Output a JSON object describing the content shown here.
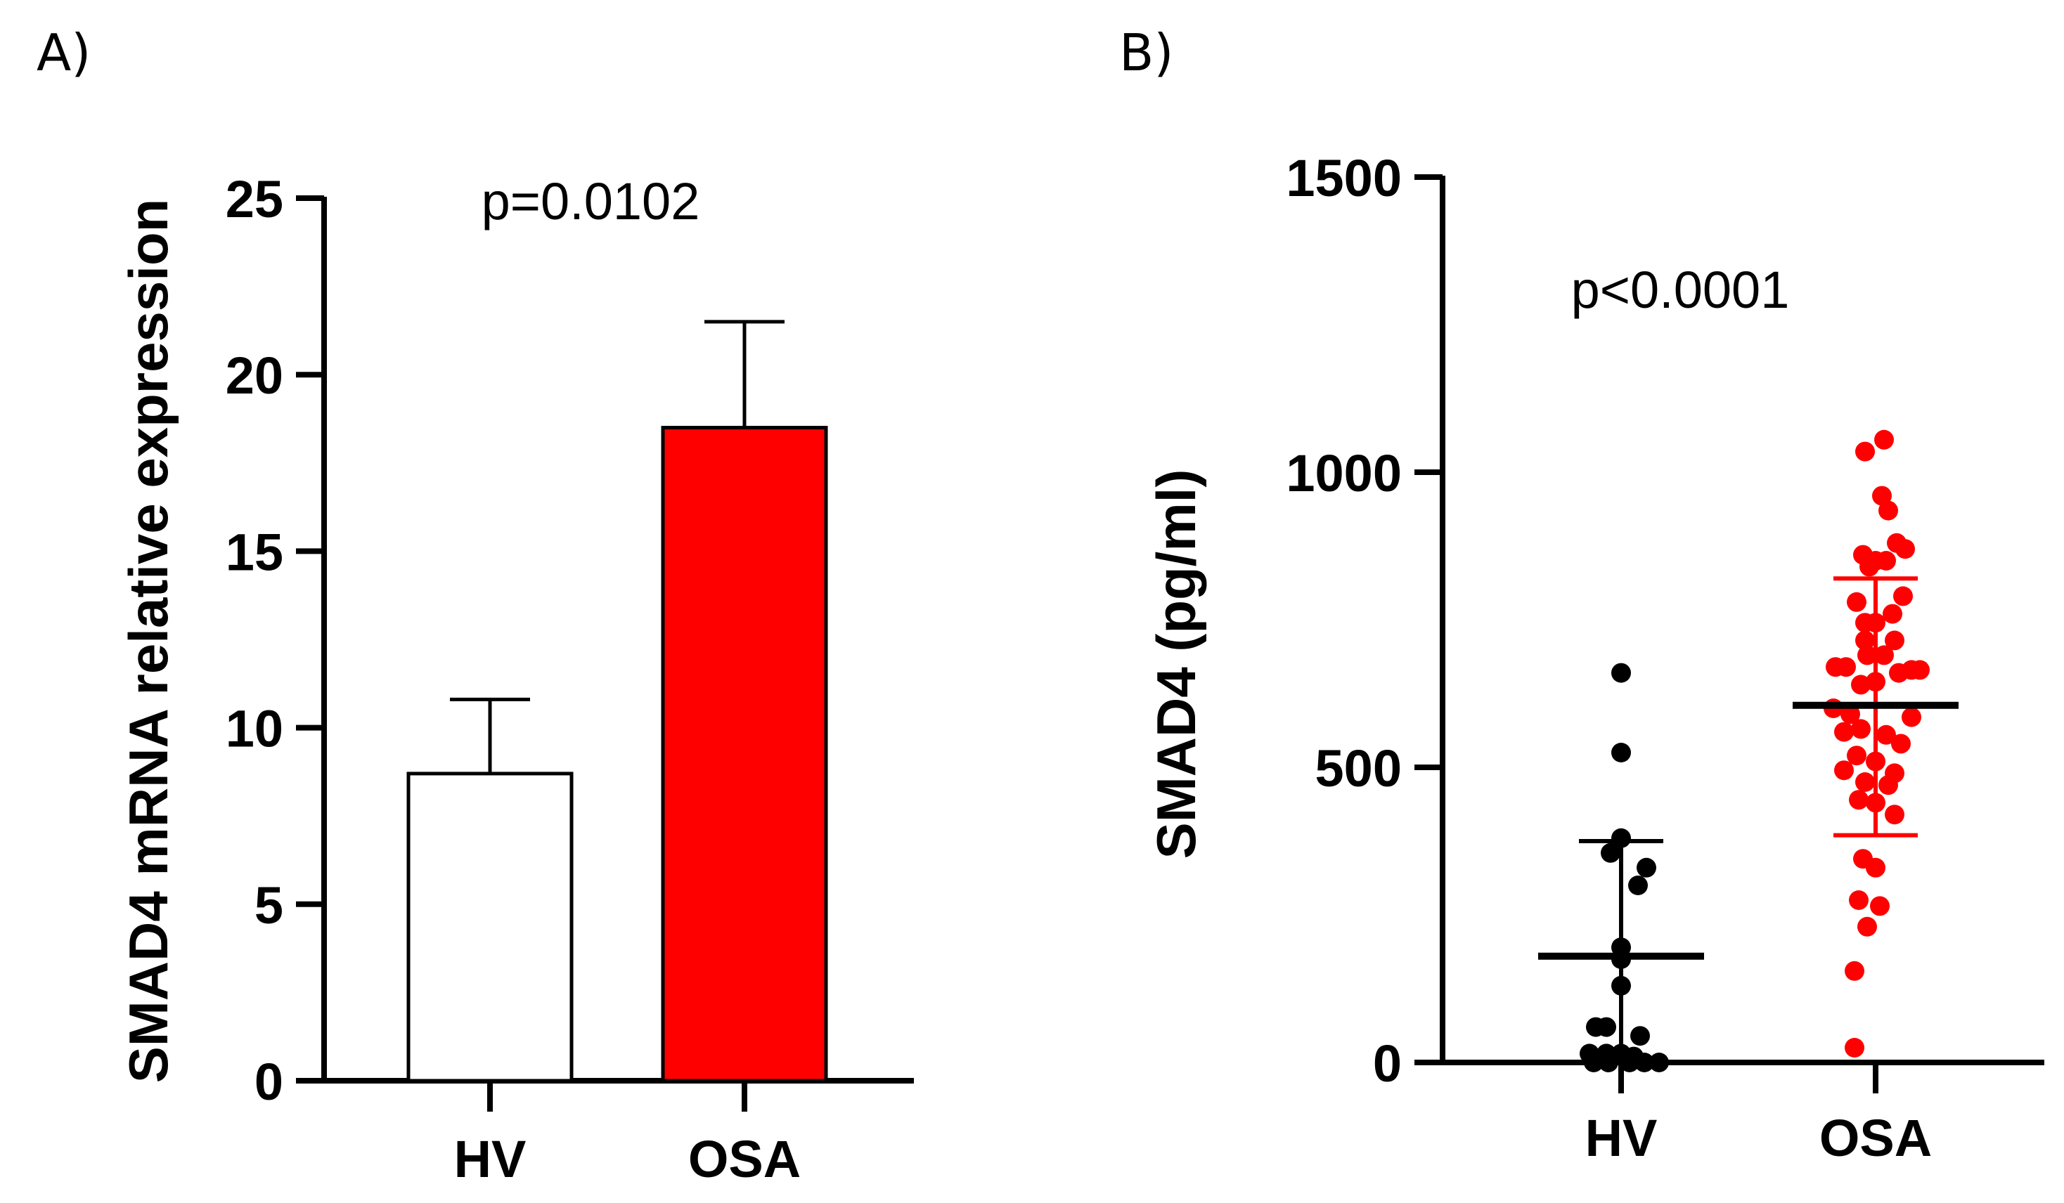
{
  "colors": {
    "axis": "#000000",
    "hv": "#000000",
    "osa": "#ff0000",
    "hv_bar_fill": "#ffffff"
  },
  "chart_data": [
    {
      "panel": "A)",
      "type": "bar",
      "ylabel": "SMAD4 mRNA relative expression",
      "xlabel": "",
      "categories": [
        "HV",
        "OSA"
      ],
      "values": [
        8.7,
        18.5
      ],
      "error_upper": [
        10.8,
        21.5
      ],
      "ylim": [
        0,
        25
      ],
      "yticks": [
        0,
        5,
        10,
        15,
        20,
        25
      ],
      "ytick_labels": [
        "0",
        "5",
        "10",
        "15",
        "20",
        "25"
      ],
      "annotation": "p=0.0102",
      "grid": false
    },
    {
      "panel": "B)",
      "type": "scatter",
      "ylabel": "SMAD4 (pg/ml)",
      "xlabel": "",
      "categories": [
        "HV",
        "OSA"
      ],
      "ylim": [
        0,
        1500
      ],
      "yticks": [
        0,
        500,
        1000,
        1500
      ],
      "ytick_labels": [
        "0",
        "500",
        "1000",
        "1500"
      ],
      "annotation": "p<0.0001",
      "grid": false,
      "series": [
        {
          "name": "HV",
          "mean": 180,
          "sd_lower": 0,
          "sd_upper": 375,
          "points": [
            {
              "x": 0.0,
              "y": 660
            },
            {
              "x": 0.0,
              "y": 525
            },
            {
              "x": 0.0,
              "y": 380
            },
            {
              "x": -0.05,
              "y": 355
            },
            {
              "x": 0.12,
              "y": 330
            },
            {
              "x": 0.08,
              "y": 300
            },
            {
              "x": 0.0,
              "y": 195
            },
            {
              "x": 0.0,
              "y": 175
            },
            {
              "x": 0.0,
              "y": 130
            },
            {
              "x": -0.12,
              "y": 60
            },
            {
              "x": -0.07,
              "y": 60
            },
            {
              "x": 0.09,
              "y": 45
            },
            {
              "x": -0.15,
              "y": 15
            },
            {
              "x": -0.07,
              "y": 15
            },
            {
              "x": 0.0,
              "y": 15
            },
            {
              "x": 0.06,
              "y": 10
            },
            {
              "x": -0.13,
              "y": 0
            },
            {
              "x": -0.06,
              "y": 0
            },
            {
              "x": 0.04,
              "y": 0
            },
            {
              "x": 0.11,
              "y": 0
            },
            {
              "x": 0.18,
              "y": 0
            }
          ]
        },
        {
          "name": "OSA",
          "mean": 605,
          "sd_lower": 385,
          "sd_upper": 820,
          "points": [
            {
              "x": 0.04,
              "y": 1055
            },
            {
              "x": -0.05,
              "y": 1035
            },
            {
              "x": 0.03,
              "y": 960
            },
            {
              "x": 0.06,
              "y": 935
            },
            {
              "x": -0.06,
              "y": 860
            },
            {
              "x": 0.0,
              "y": 850
            },
            {
              "x": 0.1,
              "y": 880
            },
            {
              "x": 0.14,
              "y": 870
            },
            {
              "x": 0.05,
              "y": 850
            },
            {
              "x": -0.03,
              "y": 840
            },
            {
              "x": 0.13,
              "y": 790
            },
            {
              "x": -0.09,
              "y": 780
            },
            {
              "x": 0.08,
              "y": 760
            },
            {
              "x": -0.05,
              "y": 745
            },
            {
              "x": 0.0,
              "y": 745
            },
            {
              "x": -0.05,
              "y": 715
            },
            {
              "x": 0.09,
              "y": 715
            },
            {
              "x": -0.04,
              "y": 690
            },
            {
              "x": 0.04,
              "y": 690
            },
            {
              "x": -0.19,
              "y": 670
            },
            {
              "x": -0.14,
              "y": 670
            },
            {
              "x": 0.17,
              "y": 665
            },
            {
              "x": 0.21,
              "y": 665
            },
            {
              "x": 0.11,
              "y": 660
            },
            {
              "x": 0.0,
              "y": 645
            },
            {
              "x": -0.07,
              "y": 640
            },
            {
              "x": -0.2,
              "y": 600
            },
            {
              "x": -0.12,
              "y": 590
            },
            {
              "x": 0.17,
              "y": 585
            },
            {
              "x": -0.15,
              "y": 560
            },
            {
              "x": -0.07,
              "y": 565
            },
            {
              "x": 0.05,
              "y": 555
            },
            {
              "x": 0.12,
              "y": 540
            },
            {
              "x": -0.09,
              "y": 520
            },
            {
              "x": 0.0,
              "y": 510
            },
            {
              "x": -0.15,
              "y": 495
            },
            {
              "x": 0.09,
              "y": 490
            },
            {
              "x": -0.05,
              "y": 475
            },
            {
              "x": 0.06,
              "y": 470
            },
            {
              "x": -0.08,
              "y": 445
            },
            {
              "x": 0.0,
              "y": 440
            },
            {
              "x": 0.09,
              "y": 420
            },
            {
              "x": -0.06,
              "y": 345
            },
            {
              "x": 0.0,
              "y": 330
            },
            {
              "x": -0.08,
              "y": 275
            },
            {
              "x": 0.02,
              "y": 265
            },
            {
              "x": -0.04,
              "y": 230
            },
            {
              "x": -0.1,
              "y": 155
            },
            {
              "x": -0.1,
              "y": 25
            }
          ]
        }
      ]
    }
  ]
}
